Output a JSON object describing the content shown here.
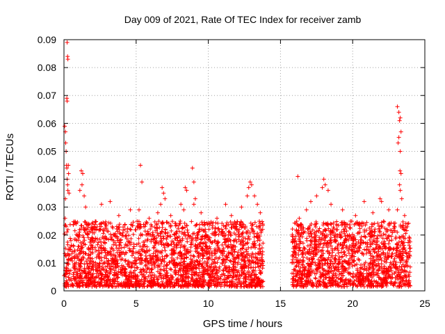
{
  "chart_data": {
    "type": "scatter",
    "title": "Day 009 of 2021, Rate Of TEC Index for receiver zamb",
    "xlabel": "GPS time / hours",
    "ylabel": "ROTI / TECUs",
    "xlim": [
      0,
      25
    ],
    "ylim": [
      0,
      0.09
    ],
    "xticks": [
      0,
      5,
      10,
      15,
      20,
      25
    ],
    "xtick_labels": [
      "0",
      "5",
      "10",
      "15",
      "20",
      "25"
    ],
    "yticks": [
      0,
      0.01,
      0.02,
      0.03,
      0.04,
      0.05,
      0.06,
      0.07,
      0.08,
      0.09
    ],
    "ytick_labels": [
      "0",
      "0.01",
      "0.02",
      "0.03",
      "0.04",
      "0.05",
      "0.06",
      "0.07",
      "0.08",
      "0.09"
    ],
    "grid": true,
    "marker": "plus",
    "color": "#ff0000",
    "series": [
      {
        "name": "ROTI",
        "points": [
          [
            0.05,
            0.059
          ],
          [
            0.1,
            0.057
          ],
          [
            0.12,
            0.053
          ],
          [
            0.15,
            0.05
          ],
          [
            0.18,
            0.045
          ],
          [
            0.2,
            0.044
          ],
          [
            0.22,
            0.04
          ],
          [
            0.25,
            0.038
          ],
          [
            0.27,
            0.036
          ],
          [
            0.1,
            0.033
          ],
          [
            0.08,
            0.026
          ],
          [
            0.2,
            0.069
          ],
          [
            0.22,
            0.068
          ],
          [
            0.25,
            0.084
          ],
          [
            0.27,
            0.083
          ],
          [
            0.22,
            0.089
          ],
          [
            0.3,
            0.045
          ],
          [
            0.32,
            0.042
          ],
          [
            0.35,
            0.035
          ],
          [
            1.2,
            0.043
          ],
          [
            1.3,
            0.042
          ],
          [
            1.25,
            0.038
          ],
          [
            1.1,
            0.036
          ],
          [
            1.4,
            0.034
          ],
          [
            1.5,
            0.03
          ],
          [
            2.6,
            0.031
          ],
          [
            3.2,
            0.032
          ],
          [
            3.8,
            0.027
          ],
          [
            4.6,
            0.029
          ],
          [
            5.3,
            0.045
          ],
          [
            5.4,
            0.039
          ],
          [
            5.2,
            0.029
          ],
          [
            5.9,
            0.026
          ],
          [
            6.5,
            0.028
          ],
          [
            6.8,
            0.037
          ],
          [
            6.9,
            0.035
          ],
          [
            7.0,
            0.033
          ],
          [
            6.7,
            0.031
          ],
          [
            7.4,
            0.027
          ],
          [
            8.1,
            0.031
          ],
          [
            8.4,
            0.037
          ],
          [
            8.5,
            0.036
          ],
          [
            8.3,
            0.029
          ],
          [
            8.9,
            0.044
          ],
          [
            9.0,
            0.039
          ],
          [
            9.1,
            0.033
          ],
          [
            9.0,
            0.031
          ],
          [
            9.5,
            0.028
          ],
          [
            10.6,
            0.026
          ],
          [
            11.2,
            0.031
          ],
          [
            11.6,
            0.027
          ],
          [
            12.3,
            0.03
          ],
          [
            12.7,
            0.034
          ],
          [
            12.8,
            0.037
          ],
          [
            12.9,
            0.039
          ],
          [
            13.0,
            0.038
          ],
          [
            13.2,
            0.034
          ],
          [
            13.4,
            0.031
          ],
          [
            13.6,
            0.028
          ],
          [
            16.2,
            0.041
          ],
          [
            16.3,
            0.026
          ],
          [
            16.8,
            0.029
          ],
          [
            17.1,
            0.032
          ],
          [
            17.5,
            0.034
          ],
          [
            17.9,
            0.037
          ],
          [
            18.0,
            0.04
          ],
          [
            18.1,
            0.038
          ],
          [
            18.3,
            0.036
          ],
          [
            18.5,
            0.031
          ],
          [
            19.3,
            0.029
          ],
          [
            20.2,
            0.027
          ],
          [
            20.8,
            0.032
          ],
          [
            21.4,
            0.028
          ],
          [
            21.9,
            0.033
          ],
          [
            22.0,
            0.032
          ],
          [
            22.5,
            0.029
          ],
          [
            23.1,
            0.066
          ],
          [
            23.2,
            0.064
          ],
          [
            23.3,
            0.062
          ],
          [
            23.25,
            0.061
          ],
          [
            23.35,
            0.057
          ],
          [
            23.2,
            0.055
          ],
          [
            23.15,
            0.053
          ],
          [
            23.3,
            0.05
          ],
          [
            23.28,
            0.043
          ],
          [
            23.35,
            0.042
          ],
          [
            23.25,
            0.038
          ],
          [
            23.3,
            0.036
          ],
          [
            23.4,
            0.033
          ],
          [
            23.1,
            0.029
          ],
          [
            23.6,
            0.027
          ]
        ],
        "dense_bands": [
          {
            "x_start": 0.0,
            "x_end": 13.8,
            "y_min": 0.0015,
            "y_max": 0.025
          },
          {
            "x_start": 15.8,
            "x_end": 24.0,
            "y_min": 0.0015,
            "y_max": 0.025
          }
        ]
      }
    ]
  }
}
